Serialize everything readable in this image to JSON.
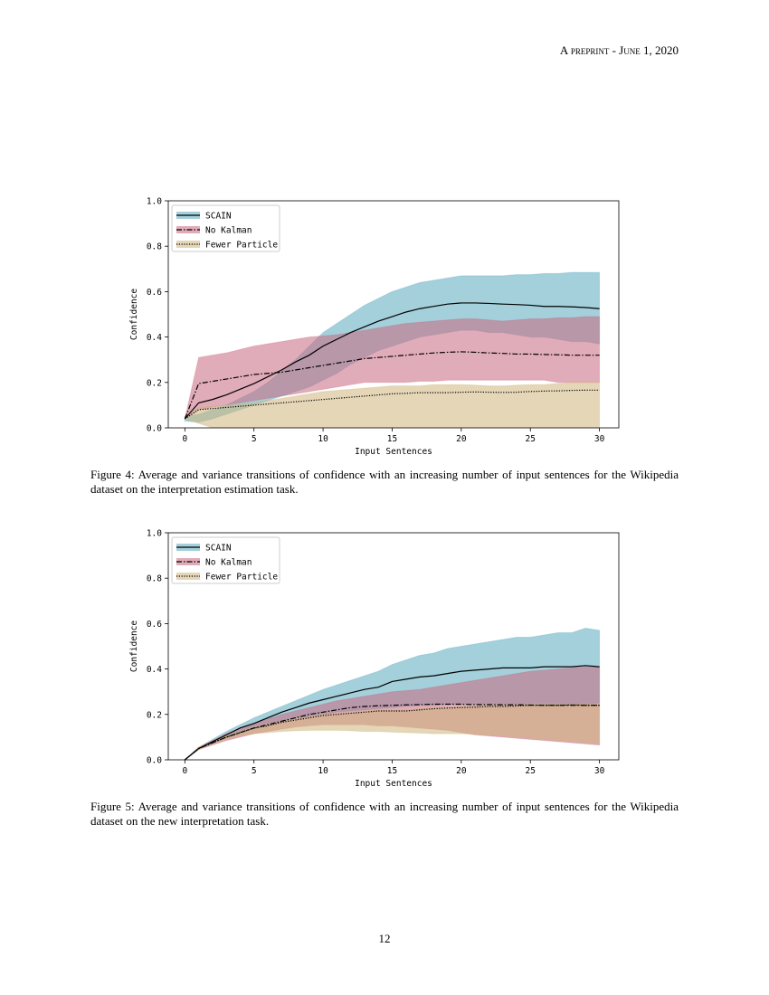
{
  "header": {
    "running_head": "A preprint - June 1, 2020"
  },
  "chart_data": [
    {
      "type": "line",
      "caption": "Figure 4:  Average and variance transitions of confidence with an increasing number of input sentences for the Wikipedia dataset on the interpretation estimation task.",
      "x_label": "Input Sentences",
      "y_label": "Confidence",
      "x": [
        0,
        1,
        2,
        3,
        4,
        5,
        6,
        7,
        8,
        9,
        10,
        11,
        12,
        13,
        14,
        15,
        16,
        17,
        18,
        19,
        20,
        21,
        22,
        23,
        24,
        25,
        26,
        27,
        28,
        29,
        30
      ],
      "xlim": [
        -1.2,
        31.4
      ],
      "xticks": [
        0,
        5,
        10,
        15,
        20,
        25,
        30
      ],
      "ylim": [
        0,
        1
      ],
      "yticks": [
        {
          "value": 0,
          "label": "0.0"
        },
        0.2,
        0.4,
        0.6,
        0.8,
        {
          "value": 1,
          "label": "1.0"
        }
      ],
      "legend": "upper left",
      "series": [
        {
          "name": "SCAIN",
          "color": "#5aa9bd",
          "linestyle": "solid",
          "values": [
            0.04,
            0.11,
            0.125,
            0.145,
            0.17,
            0.195,
            0.225,
            0.255,
            0.29,
            0.32,
            0.36,
            0.39,
            0.42,
            0.445,
            0.47,
            0.49,
            0.51,
            0.525,
            0.535,
            0.545,
            0.55,
            0.55,
            0.548,
            0.545,
            0.543,
            0.54,
            0.535,
            0.535,
            0.533,
            0.53,
            0.525
          ],
          "upper": [
            0.05,
            0.06,
            0.08,
            0.1,
            0.13,
            0.16,
            0.2,
            0.25,
            0.3,
            0.36,
            0.42,
            0.46,
            0.5,
            0.54,
            0.57,
            0.6,
            0.62,
            0.64,
            0.65,
            0.66,
            0.67,
            0.67,
            0.67,
            0.67,
            0.675,
            0.675,
            0.68,
            0.68,
            0.685,
            0.685,
            0.685
          ],
          "lower": [
            0.03,
            0.025,
            0.04,
            0.06,
            0.08,
            0.1,
            0.12,
            0.14,
            0.16,
            0.18,
            0.21,
            0.24,
            0.28,
            0.31,
            0.34,
            0.36,
            0.38,
            0.4,
            0.41,
            0.42,
            0.43,
            0.43,
            0.42,
            0.42,
            0.41,
            0.4,
            0.4,
            0.39,
            0.38,
            0.38,
            0.37
          ]
        },
        {
          "name": "No Kalman",
          "color": "#c8677f",
          "linestyle": "dashdot",
          "values": [
            0.04,
            0.195,
            0.205,
            0.215,
            0.225,
            0.235,
            0.24,
            0.245,
            0.255,
            0.265,
            0.275,
            0.285,
            0.295,
            0.305,
            0.31,
            0.315,
            0.32,
            0.325,
            0.33,
            0.333,
            0.335,
            0.333,
            0.33,
            0.328,
            0.325,
            0.325,
            0.323,
            0.322,
            0.32,
            0.32,
            0.32
          ],
          "upper": [
            0.04,
            0.31,
            0.32,
            0.33,
            0.345,
            0.36,
            0.37,
            0.38,
            0.39,
            0.4,
            0.405,
            0.41,
            0.42,
            0.43,
            0.44,
            0.45,
            0.46,
            0.465,
            0.47,
            0.475,
            0.48,
            0.48,
            0.475,
            0.47,
            0.475,
            0.48,
            0.48,
            0.485,
            0.485,
            0.49,
            0.49
          ],
          "lower": [
            0.04,
            0.08,
            0.09,
            0.1,
            0.11,
            0.12,
            0.13,
            0.14,
            0.15,
            0.16,
            0.17,
            0.18,
            0.19,
            0.2,
            0.2,
            0.2,
            0.2,
            0.205,
            0.205,
            0.21,
            0.21,
            0.21,
            0.21,
            0.21,
            0.21,
            0.21,
            0.21,
            0.2,
            0.2,
            0.2,
            0.2
          ]
        },
        {
          "name": "Fewer Particle",
          "color": "#cdb47a",
          "linestyle": "dotted",
          "values": [
            0.04,
            0.08,
            0.085,
            0.09,
            0.095,
            0.1,
            0.105,
            0.11,
            0.115,
            0.12,
            0.125,
            0.13,
            0.135,
            0.14,
            0.145,
            0.15,
            0.152,
            0.155,
            0.155,
            0.155,
            0.157,
            0.158,
            0.157,
            0.156,
            0.157,
            0.16,
            0.162,
            0.163,
            0.165,
            0.166,
            0.166
          ],
          "upper": [
            0.04,
            0.09,
            0.095,
            0.1,
            0.105,
            0.11,
            0.12,
            0.13,
            0.14,
            0.15,
            0.16,
            0.165,
            0.17,
            0.175,
            0.18,
            0.185,
            0.185,
            0.185,
            0.19,
            0.19,
            0.19,
            0.188,
            0.185,
            0.185,
            0.188,
            0.19,
            0.19,
            0.195,
            0.2,
            0.2,
            0.2
          ],
          "lower": [
            0.04,
            0.02,
            0,
            0,
            0,
            0,
            0,
            0,
            0,
            0,
            0,
            0,
            0,
            0,
            0,
            0,
            0,
            0,
            0,
            0,
            0,
            0,
            0,
            0,
            0,
            0,
            0,
            0,
            0,
            0,
            0
          ]
        }
      ]
    },
    {
      "type": "line",
      "caption": "Figure 5:  Average and variance transitions of confidence with an increasing number of input sentences for the Wikipedia dataset on the new interpretation task.",
      "x_label": "Input Sentences",
      "y_label": "Confidence",
      "x": [
        0,
        1,
        2,
        3,
        4,
        5,
        6,
        7,
        8,
        9,
        10,
        11,
        12,
        13,
        14,
        15,
        16,
        17,
        18,
        19,
        20,
        21,
        22,
        23,
        24,
        25,
        26,
        27,
        28,
        29,
        30
      ],
      "xlim": [
        -1.2,
        31.4
      ],
      "xticks": [
        0,
        5,
        10,
        15,
        20,
        25,
        30
      ],
      "ylim": [
        0,
        1
      ],
      "yticks": [
        {
          "value": 0,
          "label": "0.0"
        },
        0.2,
        0.4,
        0.6,
        0.8,
        {
          "value": 1,
          "label": "1.0"
        }
      ],
      "legend": "upper left",
      "series": [
        {
          "name": "SCAIN",
          "color": "#5aa9bd",
          "linestyle": "solid",
          "values": [
            0,
            0.05,
            0.08,
            0.11,
            0.14,
            0.16,
            0.185,
            0.21,
            0.23,
            0.25,
            0.265,
            0.28,
            0.295,
            0.31,
            0.32,
            0.345,
            0.355,
            0.365,
            0.37,
            0.38,
            0.39,
            0.395,
            0.4,
            0.405,
            0.405,
            0.405,
            0.41,
            0.41,
            0.41,
            0.415,
            0.41
          ],
          "upper": [
            0,
            0.055,
            0.09,
            0.125,
            0.155,
            0.185,
            0.21,
            0.235,
            0.26,
            0.285,
            0.31,
            0.33,
            0.35,
            0.37,
            0.39,
            0.42,
            0.44,
            0.46,
            0.47,
            0.49,
            0.5,
            0.51,
            0.52,
            0.53,
            0.54,
            0.54,
            0.55,
            0.56,
            0.56,
            0.58,
            0.57
          ],
          "lower": [
            0,
            0.045,
            0.07,
            0.095,
            0.115,
            0.135,
            0.15,
            0.165,
            0.18,
            0.19,
            0.2,
            0.21,
            0.215,
            0.22,
            0.225,
            0.23,
            0.235,
            0.24,
            0.24,
            0.245,
            0.245,
            0.245,
            0.245,
            0.245,
            0.245,
            0.245,
            0.245,
            0.245,
            0.245,
            0.245,
            0.25
          ]
        },
        {
          "name": "No Kalman",
          "color": "#c8677f",
          "linestyle": "dashdot",
          "values": [
            0,
            0.05,
            0.075,
            0.1,
            0.12,
            0.14,
            0.155,
            0.17,
            0.185,
            0.2,
            0.21,
            0.22,
            0.23,
            0.235,
            0.238,
            0.24,
            0.242,
            0.243,
            0.245,
            0.245,
            0.245,
            0.243,
            0.243,
            0.242,
            0.242,
            0.241,
            0.24,
            0.24,
            0.24,
            0.24,
            0.24
          ],
          "upper": [
            0,
            0.055,
            0.085,
            0.115,
            0.14,
            0.16,
            0.18,
            0.2,
            0.215,
            0.23,
            0.245,
            0.26,
            0.27,
            0.28,
            0.29,
            0.3,
            0.305,
            0.31,
            0.32,
            0.33,
            0.34,
            0.35,
            0.36,
            0.37,
            0.38,
            0.39,
            0.395,
            0.4,
            0.405,
            0.41,
            0.41
          ],
          "lower": [
            0,
            0.045,
            0.065,
            0.085,
            0.1,
            0.115,
            0.125,
            0.135,
            0.145,
            0.15,
            0.155,
            0.155,
            0.155,
            0.155,
            0.15,
            0.15,
            0.145,
            0.14,
            0.135,
            0.13,
            0.12,
            0.11,
            0.105,
            0.1,
            0.095,
            0.09,
            0.085,
            0.08,
            0.075,
            0.07,
            0.065
          ]
        },
        {
          "name": "Fewer Particle",
          "color": "#cdb47a",
          "linestyle": "dotted",
          "values": [
            0,
            0.05,
            0.075,
            0.1,
            0.12,
            0.14,
            0.15,
            0.165,
            0.175,
            0.185,
            0.195,
            0.2,
            0.205,
            0.21,
            0.215,
            0.215,
            0.215,
            0.22,
            0.225,
            0.228,
            0.23,
            0.232,
            0.235,
            0.235,
            0.237,
            0.24,
            0.24,
            0.24,
            0.242,
            0.24,
            0.24
          ],
          "upper": [
            0,
            0.055,
            0.08,
            0.105,
            0.125,
            0.145,
            0.16,
            0.17,
            0.18,
            0.19,
            0.2,
            0.205,
            0.21,
            0.215,
            0.22,
            0.22,
            0.22,
            0.225,
            0.23,
            0.23,
            0.235,
            0.235,
            0.24,
            0.24,
            0.24,
            0.245,
            0.245,
            0.245,
            0.245,
            0.245,
            0.245
          ],
          "lower": [
            0,
            0.045,
            0.07,
            0.09,
            0.105,
            0.115,
            0.12,
            0.125,
            0.128,
            0.13,
            0.13,
            0.13,
            0.128,
            0.125,
            0.125,
            0.122,
            0.12,
            0.118,
            0.115,
            0.115,
            0.115,
            0.112,
            0.11,
            0.105,
            0.1,
            0.095,
            0.09,
            0.085,
            0.08,
            0.075,
            0.07
          ]
        }
      ]
    }
  ],
  "footer": {
    "page_number": "12"
  }
}
